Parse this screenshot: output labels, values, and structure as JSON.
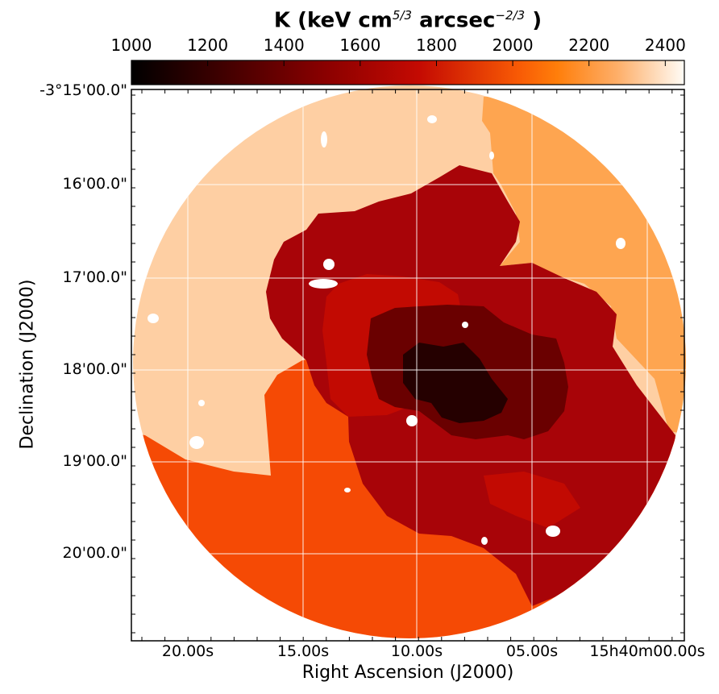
{
  "colorbar": {
    "title_prefix": "K (keV cm",
    "title_exp1": "5/3",
    "title_middle": " arcsec",
    "title_exp2": "−2/3",
    "title_suffix": ")",
    "ticks": [
      "1000",
      "1200",
      "1400",
      "1600",
      "1800",
      "2000",
      "2200",
      "2400"
    ],
    "range": [
      1000,
      2450
    ]
  },
  "axes": {
    "xlabel": "Right Ascension (J2000)",
    "ylabel": "Declination (J2000)",
    "xticks": [
      "20.00s",
      "15.00s",
      "10.00s",
      "05.00s",
      "15h40m00.00s"
    ],
    "yticks": [
      "-3°15'00.0\"",
      "16'00.0\"",
      "17'00.0\"",
      "18'00.0\"",
      "19'00.0\"",
      "20'00.0\""
    ]
  },
  "map": {
    "regions": [
      {
        "name": "outer-north-west",
        "K": 2300,
        "color": "#fecfa3"
      },
      {
        "name": "outer-north-east",
        "K": 2150,
        "color": "#fea550"
      },
      {
        "name": "outer-south",
        "K": 1950,
        "color": "#f54a05"
      },
      {
        "name": "middle-ring",
        "K": 1700,
        "color": "#a80408"
      },
      {
        "name": "inner-ring",
        "K": 1750,
        "color": "#c20a02"
      },
      {
        "name": "core-outer",
        "K": 1450,
        "color": "#6a0000"
      },
      {
        "name": "core",
        "K": 1100,
        "color": "#250000"
      }
    ],
    "masked_color": "#ffffff"
  }
}
